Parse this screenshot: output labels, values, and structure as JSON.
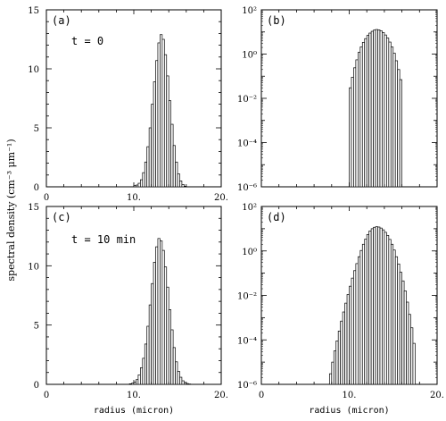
{
  "ylabel": "spectral density  (cm⁻³ μm⁻¹)",
  "chart_data": [
    {
      "panel": "(a)",
      "annotation": "t = 0",
      "type": "histogram",
      "scale": "linear",
      "xlim": [
        0,
        20
      ],
      "ylim": [
        0,
        15
      ],
      "xticks": [
        "0",
        "10.",
        "20."
      ],
      "yticks": [
        "0",
        "5",
        "10",
        "15"
      ],
      "xlabel": "",
      "bin_width": 0.25,
      "x": [
        10.0,
        10.25,
        10.5,
        10.75,
        11.0,
        11.25,
        11.5,
        11.75,
        12.0,
        12.25,
        12.5,
        12.75,
        13.0,
        13.25,
        13.5,
        13.75,
        14.0,
        14.25,
        14.5,
        14.75,
        15.0,
        15.25,
        15.5,
        15.75
      ],
      "y": [
        0.1,
        0.15,
        0.3,
        0.6,
        1.2,
        2.1,
        3.4,
        5.0,
        7.0,
        8.9,
        10.7,
        12.2,
        12.9,
        12.5,
        11.2,
        9.4,
        7.3,
        5.3,
        3.5,
        2.1,
        1.1,
        0.5,
        0.2,
        0.05
      ]
    },
    {
      "panel": "(b)",
      "annotation": "",
      "type": "histogram",
      "scale": "log",
      "xlim": [
        0,
        20
      ],
      "ylim": [
        1e-06,
        100
      ],
      "xticks": [],
      "yticks": [
        "10⁻⁶",
        "10⁻⁴",
        "10⁻²",
        "10⁰",
        "10²"
      ],
      "xlabel": "",
      "bin_width": 0.25,
      "x": [
        10.0,
        10.25,
        10.5,
        10.75,
        11.0,
        11.25,
        11.5,
        11.75,
        12.0,
        12.25,
        12.5,
        12.75,
        13.0,
        13.25,
        13.5,
        13.75,
        14.0,
        14.25,
        14.5,
        14.75,
        15.0,
        15.25,
        15.5,
        15.75
      ],
      "y": [
        0.03,
        0.09,
        0.24,
        0.55,
        1.2,
        2.1,
        3.4,
        5.0,
        7.0,
        8.9,
        10.7,
        12.2,
        12.9,
        12.5,
        11.2,
        9.4,
        7.3,
        5.3,
        3.5,
        2.1,
        1.1,
        0.5,
        0.2,
        0.07
      ]
    },
    {
      "panel": "(c)",
      "annotation": "t = 10 min",
      "type": "histogram",
      "scale": "linear",
      "xlim": [
        0,
        20
      ],
      "ylim": [
        0,
        15
      ],
      "xticks": [
        "0",
        "10.",
        "20."
      ],
      "yticks": [
        "0",
        "5",
        "10",
        "15"
      ],
      "xlabel": "radius (micron)",
      "bin_width": 0.25,
      "x": [
        9.5,
        9.75,
        10.0,
        10.25,
        10.5,
        10.75,
        11.0,
        11.25,
        11.5,
        11.75,
        12.0,
        12.25,
        12.5,
        12.75,
        13.0,
        13.25,
        13.5,
        13.75,
        14.0,
        14.25,
        14.5,
        14.75,
        15.0,
        15.25,
        15.5,
        15.75,
        16.0,
        16.25
      ],
      "y": [
        0.05,
        0.1,
        0.2,
        0.4,
        0.8,
        1.4,
        2.2,
        3.4,
        4.9,
        6.7,
        8.5,
        10.3,
        11.6,
        12.3,
        12.1,
        11.3,
        9.9,
        8.2,
        6.3,
        4.6,
        3.1,
        1.9,
        1.1,
        0.6,
        0.3,
        0.15,
        0.07,
        0.03
      ]
    },
    {
      "panel": "(d)",
      "annotation": "",
      "type": "histogram",
      "scale": "log",
      "xlim": [
        0,
        20
      ],
      "ylim": [
        1e-06,
        100
      ],
      "xticks": [
        "0",
        "10.",
        "20."
      ],
      "yticks": [
        "10⁻⁶",
        "10⁻⁴",
        "10⁻²",
        "10⁰",
        "10²"
      ],
      "xlabel": "radius (micron)",
      "bin_width": 0.25,
      "x": [
        7.75,
        8.0,
        8.25,
        8.5,
        8.75,
        9.0,
        9.25,
        9.5,
        9.75,
        10.0,
        10.25,
        10.5,
        10.75,
        11.0,
        11.25,
        11.5,
        11.75,
        12.0,
        12.25,
        12.5,
        12.75,
        13.0,
        13.25,
        13.5,
        13.75,
        14.0,
        14.25,
        14.5,
        14.75,
        15.0,
        15.25,
        15.5,
        15.75,
        16.0,
        16.25,
        16.5,
        16.75,
        17.0,
        17.25
      ],
      "y": [
        3e-06,
        1e-05,
        3.2e-05,
        9e-05,
        0.00025,
        0.0007,
        0.0018,
        0.0045,
        0.011,
        0.026,
        0.06,
        0.13,
        0.27,
        0.55,
        1.05,
        2.0,
        3.4,
        5.5,
        7.9,
        10.0,
        11.6,
        12.3,
        11.9,
        10.7,
        8.9,
        6.9,
        5.0,
        3.3,
        2.0,
        1.1,
        0.55,
        0.26,
        0.11,
        0.045,
        0.016,
        0.005,
        0.0014,
        0.00035,
        7e-05
      ]
    }
  ]
}
